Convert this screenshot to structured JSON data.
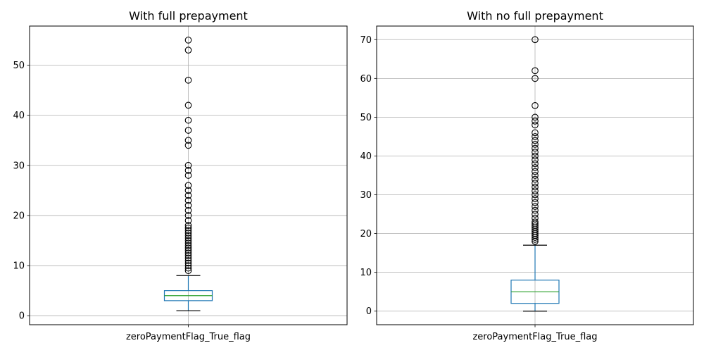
{
  "chart_data": [
    {
      "type": "boxplot",
      "title": "With full prepayment",
      "categories": [
        "zeroPaymentFlag_True_flag"
      ],
      "ylim": [
        -1.8,
        57.8
      ],
      "yticks": [
        0,
        10,
        20,
        30,
        40,
        50
      ],
      "grid": true,
      "colors": {
        "box": "#1f77b4",
        "median": "#2ca02c",
        "whisker": "#1f77b4",
        "cap": "#000000",
        "flier": "#000000",
        "grid": "#b0b0b0"
      },
      "box": {
        "whisker_low": 1,
        "q1": 3,
        "median": 4,
        "q3": 5,
        "whisker_high": 8
      },
      "outliers": [
        9,
        9.5,
        10,
        10.5,
        11,
        11.5,
        12,
        12.5,
        13,
        13.5,
        14,
        14.5,
        15,
        15.5,
        16,
        16.5,
        17,
        17.5,
        18,
        19,
        20,
        21,
        22,
        23,
        24,
        25,
        26,
        28,
        29,
        30,
        34,
        35,
        37,
        39,
        42,
        47,
        53,
        55
      ]
    },
    {
      "type": "boxplot",
      "title": "With no full prepayment",
      "categories": [
        "zeroPaymentFlag_True_flag"
      ],
      "ylim": [
        -3.5,
        73.5
      ],
      "yticks": [
        0,
        10,
        20,
        30,
        40,
        50,
        60,
        70
      ],
      "grid": true,
      "colors": {
        "box": "#1f77b4",
        "median": "#2ca02c",
        "whisker": "#1f77b4",
        "cap": "#000000",
        "flier": "#000000",
        "grid": "#b0b0b0"
      },
      "box": {
        "whisker_low": 0,
        "q1": 2,
        "median": 5,
        "q3": 8,
        "whisker_high": 17
      },
      "outliers": [
        18,
        18.5,
        19,
        19.5,
        20,
        20.5,
        21,
        21.5,
        22,
        22.5,
        23,
        24,
        25,
        26,
        27,
        28,
        29,
        30,
        31,
        32,
        33,
        34,
        35,
        36,
        37,
        38,
        39,
        40,
        41,
        42,
        43,
        44,
        45,
        46,
        48,
        49,
        50,
        53,
        60,
        62,
        70
      ]
    }
  ]
}
